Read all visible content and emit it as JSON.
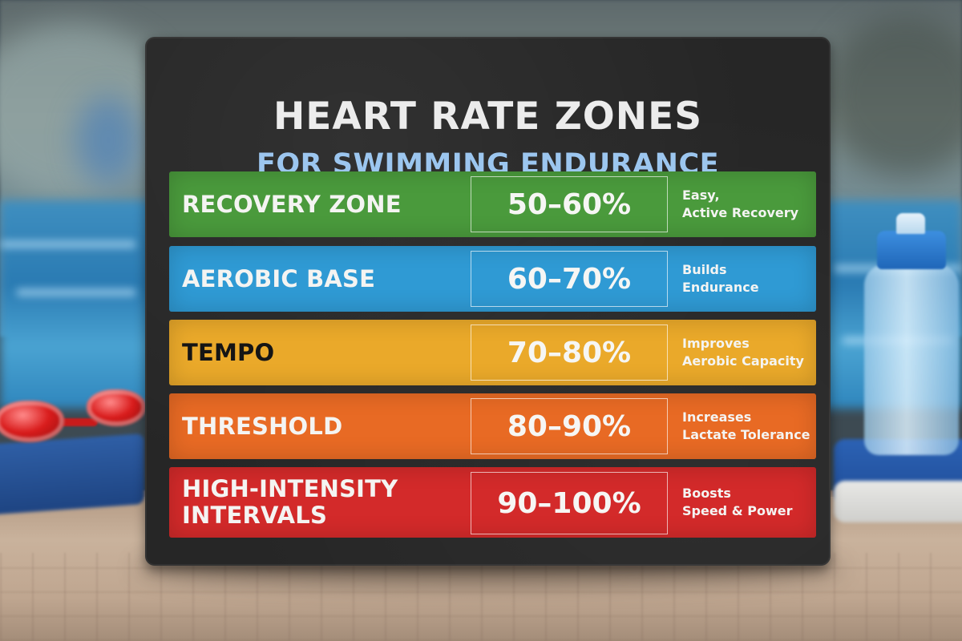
{
  "sign": {
    "title": "HEART RATE ZONES",
    "subtitle": "FOR SWIMMING ENDURANCE"
  },
  "zones": [
    {
      "name": "RECOVERY ZONE",
      "percent": "50–60%",
      "desc_line1": "Easy,",
      "desc_line2": "Active Recovery",
      "color": "#4a9a3c"
    },
    {
      "name": "AEROBIC BASE",
      "percent": "60–70%",
      "desc_line1": "Builds",
      "desc_line2": "Endurance",
      "color": "#2f9ad4"
    },
    {
      "name": "TEMPO",
      "percent": "70–80%",
      "desc_line1": "Improves",
      "desc_line2": "Aerobic Capacity",
      "color": "#eaa92a"
    },
    {
      "name": "THRESHOLD",
      "percent": "80–90%",
      "desc_line1": "Increases",
      "desc_line2": "Lactate Tolerance",
      "color": "#e86a24"
    },
    {
      "name_line1": "HIGH-INTENSITY",
      "name_line2": "INTERVALS",
      "percent": "90–100%",
      "desc_line1": "Boosts",
      "desc_line2": "Speed & Power",
      "color": "#d32a2a"
    }
  ],
  "colors": {
    "chalkboard": "#262626",
    "title": "#ececec",
    "subtitle": "#9cc6ef",
    "pool": "#2a7bb3",
    "deck": "#c9b29c"
  },
  "objects": {
    "left": [
      "red-swim-goggles",
      "blue-kickboard"
    ],
    "right": [
      "water-bottle-icon",
      "blue-towel"
    ]
  }
}
